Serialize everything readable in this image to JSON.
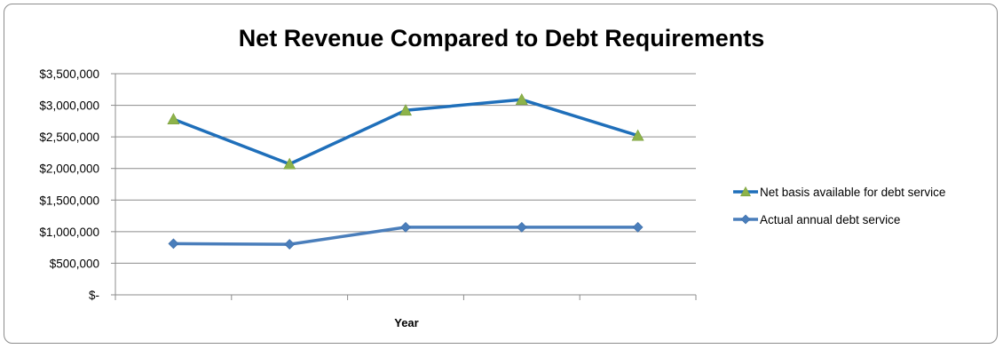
{
  "chart_data": {
    "type": "line",
    "title": "Net Revenue Compared to Debt Requirements",
    "xlabel": "Year",
    "ylabel": "",
    "categories": [
      "",
      "",
      "",
      "",
      ""
    ],
    "ylim": [
      0,
      3500000
    ],
    "yticks": [
      0,
      500000,
      1000000,
      1500000,
      2000000,
      2500000,
      3000000,
      3500000
    ],
    "ytick_labels": [
      "$-",
      "$500,000",
      "$1,000,000",
      "$1,500,000",
      "$2,000,000",
      "$2,500,000",
      "$3,000,000",
      "$3,500,000"
    ],
    "grid": true,
    "legend_position": "right",
    "series": [
      {
        "name": "Net basis available for debt service",
        "values": [
          2780000,
          2070000,
          2920000,
          3090000,
          2520000
        ],
        "line_color": "#1f6fba",
        "marker": "triangle",
        "marker_color": "#8db34a"
      },
      {
        "name": "Actual annual debt service",
        "values": [
          810000,
          800000,
          1070000,
          1070000,
          1070000
        ],
        "line_color": "#4a7ebb",
        "marker": "diamond",
        "marker_color": "#4a7ebb"
      }
    ]
  }
}
